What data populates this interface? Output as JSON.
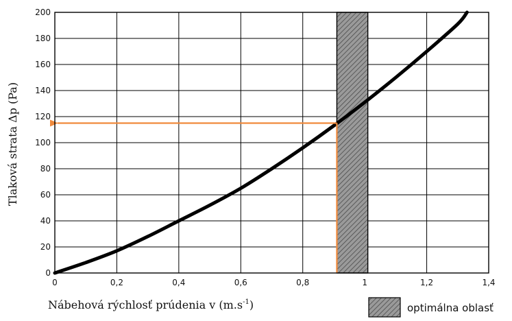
{
  "chart_data": {
    "type": "line",
    "ylabel": "Tlaková strata Δp (Pa)",
    "xlabel_main": "Nábehová rýchlosť prúdenia v (m.s",
    "xlabel_sup": "-1",
    "xlabel_close": ")",
    "xlim": [
      0,
      1.4
    ],
    "ylim": [
      0,
      200
    ],
    "x_ticks": [
      "0",
      "0,2",
      "0,4",
      "0,6",
      "0,8",
      "1",
      "1,2",
      "1,4"
    ],
    "y_ticks": [
      "0",
      "20",
      "40",
      "60",
      "80",
      "100",
      "120",
      "140",
      "160",
      "180",
      "200"
    ],
    "grid": true,
    "series": [
      {
        "x": [
          0,
          0.1,
          0.2,
          0.3,
          0.4,
          0.5,
          0.6,
          0.7,
          0.8,
          0.9,
          1.0,
          1.1,
          1.2,
          1.3,
          1.33
        ],
        "y": [
          0,
          8,
          17,
          28,
          40,
          52,
          65,
          80,
          96,
          113,
          131,
          150,
          170,
          191,
          200
        ],
        "color": "#000000"
      }
    ],
    "optimal_region": {
      "x_start": 0.91,
      "x_end": 1.01,
      "label": "optimálna oblasť"
    },
    "marker": {
      "x": 0.91,
      "y": 115,
      "color": "#f08a3c"
    },
    "colors": {
      "curve": "#000000",
      "marker": "#f08a3c",
      "band": "#8a8a8a"
    }
  }
}
